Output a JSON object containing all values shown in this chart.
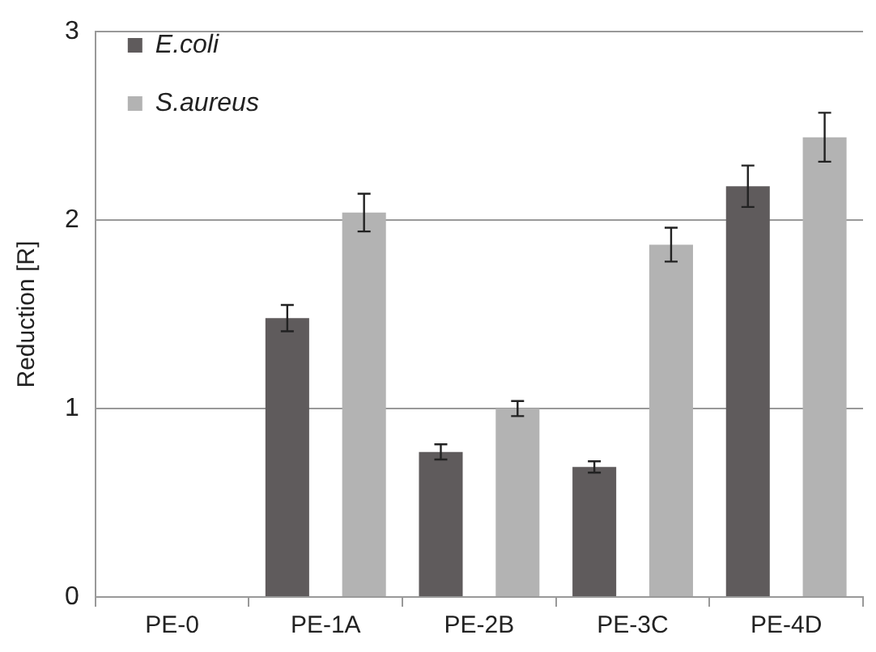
{
  "chart_data": {
    "type": "bar",
    "ylabel": "Reduction [R]",
    "categories": [
      "PE-0",
      "PE-1A",
      "PE-2B",
      "PE-3C",
      "PE-4D"
    ],
    "series": [
      {
        "name": "E.coli",
        "color": "#5f5b5c",
        "values": [
          0,
          1.48,
          0.77,
          0.69,
          2.18
        ],
        "errors": [
          null,
          0.07,
          0.04,
          0.03,
          0.11
        ]
      },
      {
        "name": "S.aureus",
        "color": "#b3b3b3",
        "values": [
          0,
          2.04,
          1.0,
          1.87,
          2.44
        ],
        "errors": [
          null,
          0.1,
          0.04,
          0.09,
          0.13
        ]
      }
    ],
    "ylim": [
      0,
      3
    ],
    "yticks": [
      0,
      1,
      2,
      3
    ],
    "grid": "y",
    "legend": "top left"
  }
}
